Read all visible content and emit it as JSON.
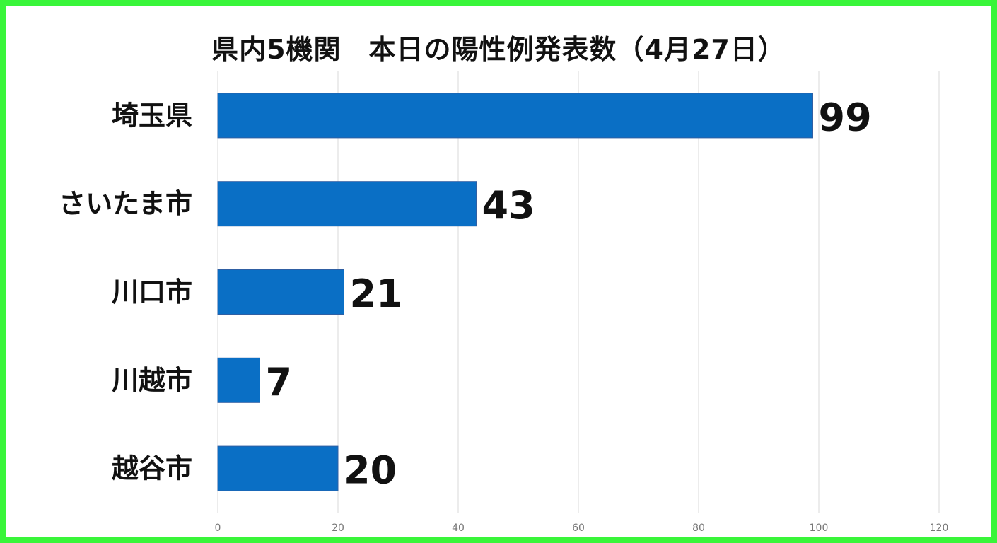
{
  "chart_data": {
    "type": "bar",
    "orientation": "horizontal",
    "title": "県内5機関　本日の陽性例発表数（4月27日）",
    "categories": [
      "埼玉県",
      "さいたま市",
      "川口市",
      "川越市",
      "越谷市"
    ],
    "values": [
      99,
      43,
      21,
      7,
      20
    ],
    "xlim": [
      0,
      120
    ],
    "x_ticks": [
      "0",
      "20",
      "40",
      "60",
      "80",
      "100",
      "120"
    ],
    "xlabel": "",
    "ylabel": "",
    "grid": "vertical",
    "legend": "none",
    "data_labels": true
  },
  "colors": {
    "bar": "#0a6fc5",
    "bar_edge": "#2f5fa3",
    "frame": "#39f53a",
    "grid": "#d9d9d9"
  }
}
